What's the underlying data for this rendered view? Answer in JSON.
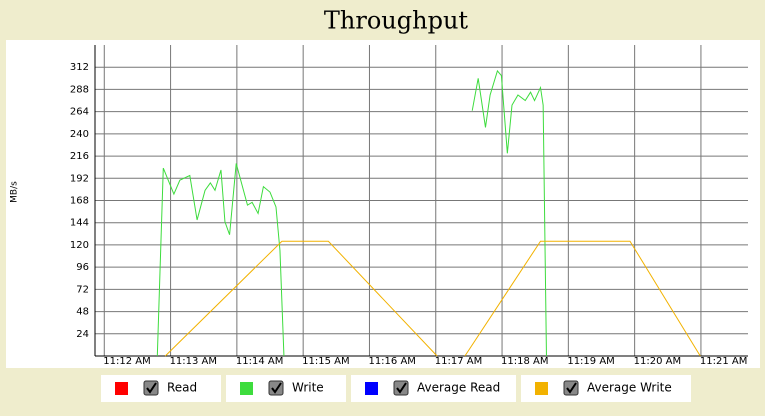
{
  "chart_data": {
    "type": "line",
    "title": "Throughput",
    "y_label": "MB/s",
    "xlim": [
      11.86,
      21.71
    ],
    "ylim": [
      0,
      336
    ],
    "xticks": [
      {
        "value": 12,
        "label": "11:12 AM"
      },
      {
        "value": 13,
        "label": "11:13 AM"
      },
      {
        "value": 14,
        "label": "11:14 AM"
      },
      {
        "value": 15,
        "label": "11:15 AM"
      },
      {
        "value": 16,
        "label": "11:16 AM"
      },
      {
        "value": 17,
        "label": "11:17 AM"
      },
      {
        "value": 18,
        "label": "11:18 AM"
      },
      {
        "value": 19,
        "label": "11:19 AM"
      },
      {
        "value": 20,
        "label": "11:20 AM"
      },
      {
        "value": 21,
        "label": "11:21 AM"
      }
    ],
    "yticks": [
      24,
      48,
      72,
      96,
      120,
      144,
      168,
      192,
      216,
      240,
      264,
      288,
      312
    ],
    "grid": true,
    "series": [
      {
        "name": "Read",
        "color": "#ff0000",
        "x": [],
        "values": []
      },
      {
        "name": "Write",
        "color": "#3ddc3d",
        "x": [
          12.8,
          12.89,
          13.05,
          13.14,
          13.29,
          13.4,
          13.52,
          13.6,
          13.67,
          13.76,
          13.82,
          13.89,
          13.99,
          14.16,
          14.23,
          14.32,
          14.4,
          14.5,
          14.59,
          14.65,
          14.71,
          17.41,
          17.55,
          17.64,
          17.75,
          17.82,
          17.93,
          17.99,
          18.08,
          18.15,
          18.24,
          18.35,
          18.43,
          18.49,
          18.58,
          18.62,
          18.67
        ],
        "values": [
          0,
          203,
          175,
          190,
          195,
          147,
          179,
          187,
          179,
          201,
          145,
          131,
          208,
          163,
          166,
          154,
          183,
          177,
          161,
          114,
          0,
          null,
          265,
          300,
          247,
          282,
          308,
          303,
          219,
          271,
          282,
          276,
          285,
          276,
          290,
          271,
          0
        ]
      },
      {
        "name": "Average Read",
        "color": "#0000ff",
        "x": [],
        "values": []
      },
      {
        "name": "Average Write",
        "color": "#f2b200",
        "x": [
          12.92,
          14.68,
          15.38,
          17.02,
          17.3,
          17.44,
          18.58,
          19.93,
          20.99
        ],
        "values": [
          0,
          124,
          124,
          0,
          null,
          0,
          124,
          124,
          0
        ]
      }
    ]
  }
}
